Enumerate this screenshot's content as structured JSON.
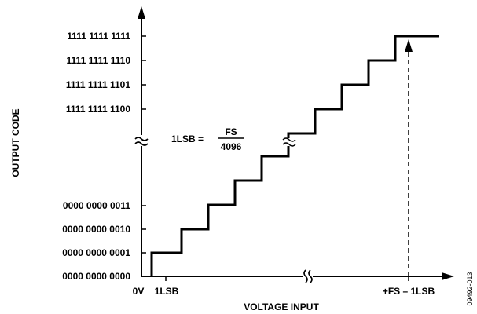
{
  "diagram": {
    "y_axis_label": "OUTPUT CODE",
    "x_axis_label": "VOLTAGE INPUT",
    "y_codes_top": [
      "1111 1111 1111",
      "1111 1111 1110",
      "1111 1111 1101",
      "1111 1111 1100"
    ],
    "y_codes_bottom": [
      "0000 0000 0011",
      "0000 0000 0010",
      "0000 0000 0001",
      "0000 0000 0000"
    ],
    "x_tick_origin": "0V",
    "x_tick_first": "1LSB",
    "x_tick_last": "+FS – 1LSB",
    "equation_lhs": "1LSB =",
    "equation_numerator": "FS",
    "equation_denominator": "4096",
    "figure_id": "09492-013",
    "break_symbol": "≈"
  }
}
